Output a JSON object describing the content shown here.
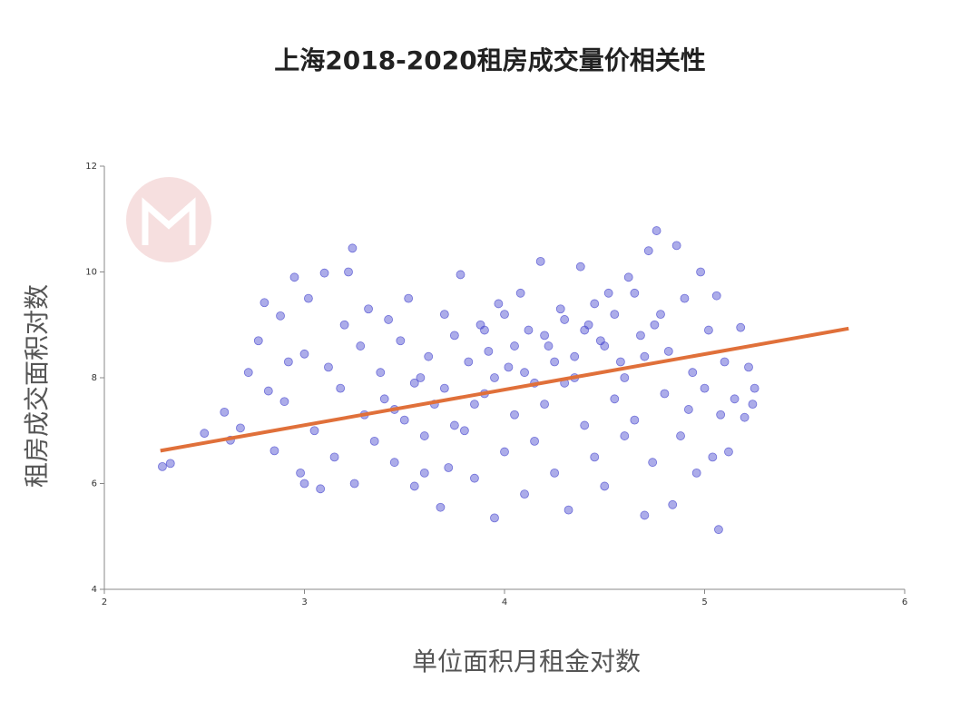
{
  "chart_data": {
    "type": "scatter",
    "title": "上海2018-2020租房成交量价相关性",
    "x_label": "单位面积月租金对数",
    "y_label": "租房成交面积对数",
    "xlim": [
      2,
      6
    ],
    "xticks": [
      2,
      3,
      4,
      5,
      6
    ],
    "ylim": [
      4,
      12
    ],
    "yticks": [
      4,
      6,
      8,
      10,
      12
    ],
    "points": {
      "color": "#4646cf",
      "x": [
        2.29,
        2.33,
        2.5,
        2.6,
        2.63,
        2.68,
        2.72,
        2.77,
        2.8,
        2.82,
        2.85,
        2.88,
        2.9,
        2.92,
        2.95,
        2.98,
        3.0,
        3.02,
        3.05,
        3.08,
        3.1,
        3.12,
        3.15,
        3.18,
        3.2,
        3.22,
        3.24,
        3.25,
        3.28,
        3.3,
        3.32,
        3.35,
        3.38,
        3.4,
        3.42,
        3.45,
        3.48,
        3.5,
        3.52,
        3.55,
        3.58,
        3.6,
        3.62,
        3.65,
        3.68,
        3.7,
        3.72,
        3.75,
        3.78,
        3.8,
        3.82,
        3.85,
        3.88,
        3.9,
        3.92,
        3.95,
        3.97,
        4.0,
        4.02,
        4.05,
        4.08,
        4.1,
        4.12,
        4.15,
        4.18,
        4.2,
        4.22,
        4.25,
        4.28,
        4.3,
        4.32,
        4.35,
        4.38,
        4.4,
        4.42,
        4.45,
        4.48,
        4.5,
        4.52,
        4.55,
        4.58,
        4.6,
        4.62,
        4.65,
        4.68,
        4.7,
        4.72,
        4.74,
        4.76,
        4.78,
        4.8,
        4.82,
        4.84,
        4.86,
        4.88,
        4.9,
        4.92,
        4.94,
        4.96,
        4.98,
        5.0,
        5.02,
        5.04,
        5.06,
        5.07,
        5.08,
        5.1,
        5.12,
        5.15,
        5.18,
        5.2,
        5.22,
        5.24,
        5.25,
        3.0,
        3.6,
        3.7,
        3.9,
        4.0,
        4.1,
        4.2,
        4.3,
        4.35,
        4.4,
        4.45,
        4.5,
        4.55,
        4.6,
        4.65,
        4.7,
        4.75,
        3.85,
        3.95,
        4.05,
        4.15,
        4.25,
        3.55,
        3.45,
        3.75
      ],
      "y": [
        6.32,
        6.38,
        6.95,
        7.35,
        6.82,
        7.05,
        8.1,
        8.7,
        9.42,
        7.75,
        6.62,
        9.17,
        7.55,
        8.3,
        9.9,
        6.2,
        8.45,
        9.5,
        7.0,
        5.9,
        9.98,
        8.2,
        6.5,
        7.8,
        9.0,
        10.0,
        10.45,
        6.0,
        8.6,
        7.3,
        9.3,
        6.8,
        8.1,
        7.6,
        9.1,
        6.4,
        8.7,
        7.2,
        9.5,
        5.95,
        8.0,
        6.9,
        8.4,
        7.5,
        5.55,
        9.2,
        6.3,
        8.8,
        9.95,
        7.0,
        8.3,
        6.1,
        9.0,
        7.7,
        8.5,
        5.35,
        9.4,
        6.6,
        8.2,
        7.3,
        9.6,
        5.8,
        8.9,
        6.8,
        10.2,
        7.5,
        8.6,
        6.2,
        9.3,
        7.9,
        5.5,
        8.4,
        10.1,
        7.1,
        9.0,
        6.5,
        8.7,
        5.95,
        9.6,
        7.6,
        8.3,
        6.9,
        9.9,
        7.2,
        8.8,
        5.4,
        10.4,
        6.4,
        10.78,
        9.2,
        7.7,
        8.5,
        5.6,
        10.5,
        6.9,
        9.5,
        7.4,
        8.1,
        6.2,
        10.0,
        7.8,
        8.9,
        6.5,
        9.55,
        5.13,
        7.3,
        8.3,
        6.6,
        7.6,
        8.95,
        7.25,
        8.2,
        7.5,
        7.8,
        6.0,
        6.2,
        7.8,
        8.9,
        9.2,
        8.1,
        8.8,
        9.1,
        8.0,
        8.9,
        9.4,
        8.6,
        9.2,
        8.0,
        9.6,
        8.4,
        9.0,
        7.5,
        8.0,
        8.6,
        7.9,
        8.3,
        7.9,
        7.4,
        7.1
      ]
    },
    "trend": {
      "color": "#e0703a",
      "x": [
        2.28,
        5.72
      ],
      "y": [
        6.62,
        8.93
      ]
    }
  }
}
